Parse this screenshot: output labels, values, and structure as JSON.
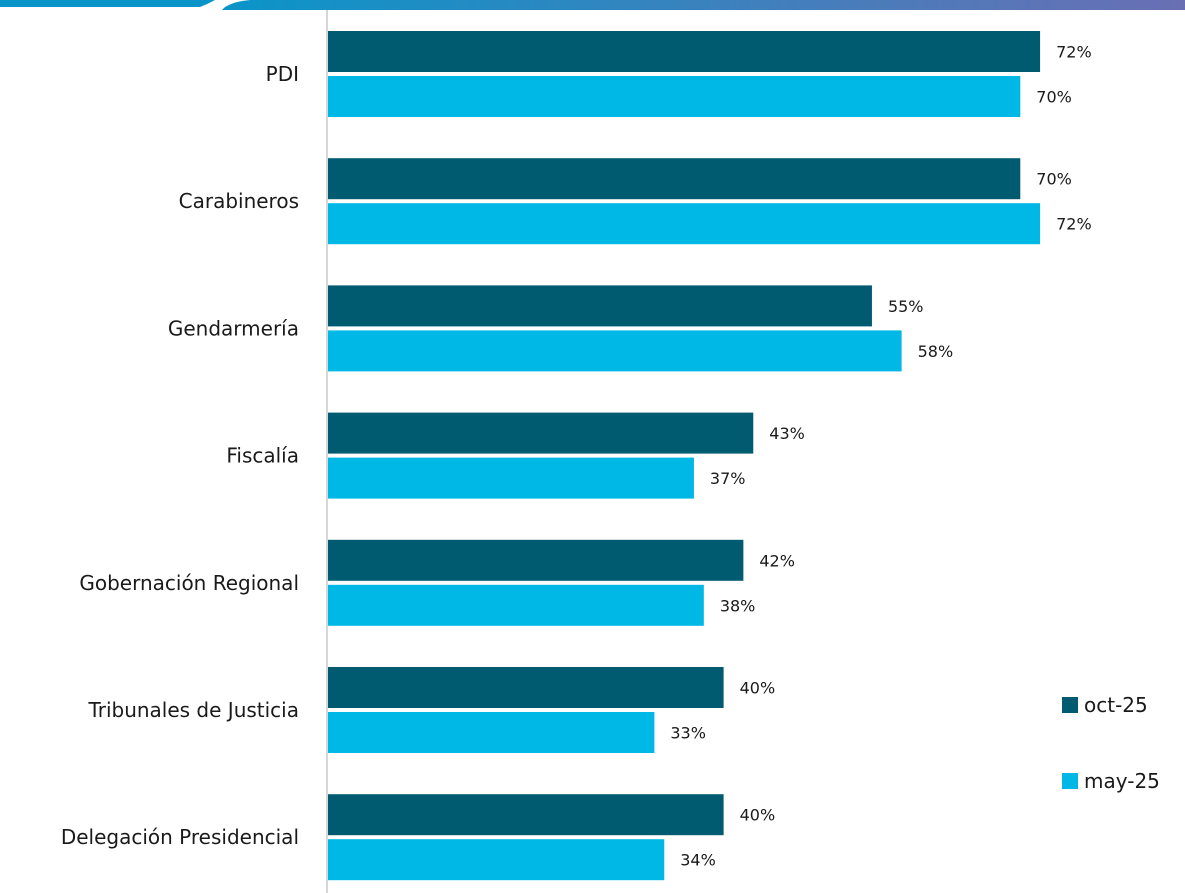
{
  "chart_data": {
    "type": "bar",
    "orientation": "horizontal",
    "categories": [
      "PDI",
      "Carabineros",
      "Gendarmería",
      "Fiscalía",
      "Gobernación Regional",
      "Tribunales de Justicia",
      "Delegación Presidencial"
    ],
    "series": [
      {
        "name": "oct-25",
        "color": "#005b70",
        "values": [
          72,
          70,
          55,
          43,
          42,
          40,
          40
        ],
        "labels": [
          "72%",
          "70%",
          "55%",
          "43%",
          "42%",
          "40%",
          "40%"
        ]
      },
      {
        "name": "may-25",
        "color": "#00b8e6",
        "values": [
          70,
          72,
          58,
          37,
          38,
          33,
          34
        ],
        "labels": [
          "70%",
          "72%",
          "58%",
          "37%",
          "38%",
          "33%",
          "34%"
        ]
      }
    ],
    "unit": "%",
    "xlim": [
      0,
      100
    ],
    "grid": false,
    "legend_position": "bottom-right",
    "title": "",
    "xlabel": "",
    "ylabel": ""
  },
  "theme": {
    "accent_band_start": "#0a95c8",
    "accent_band_end": "#6a6fb4",
    "axis_color": "#c8c8c8"
  }
}
